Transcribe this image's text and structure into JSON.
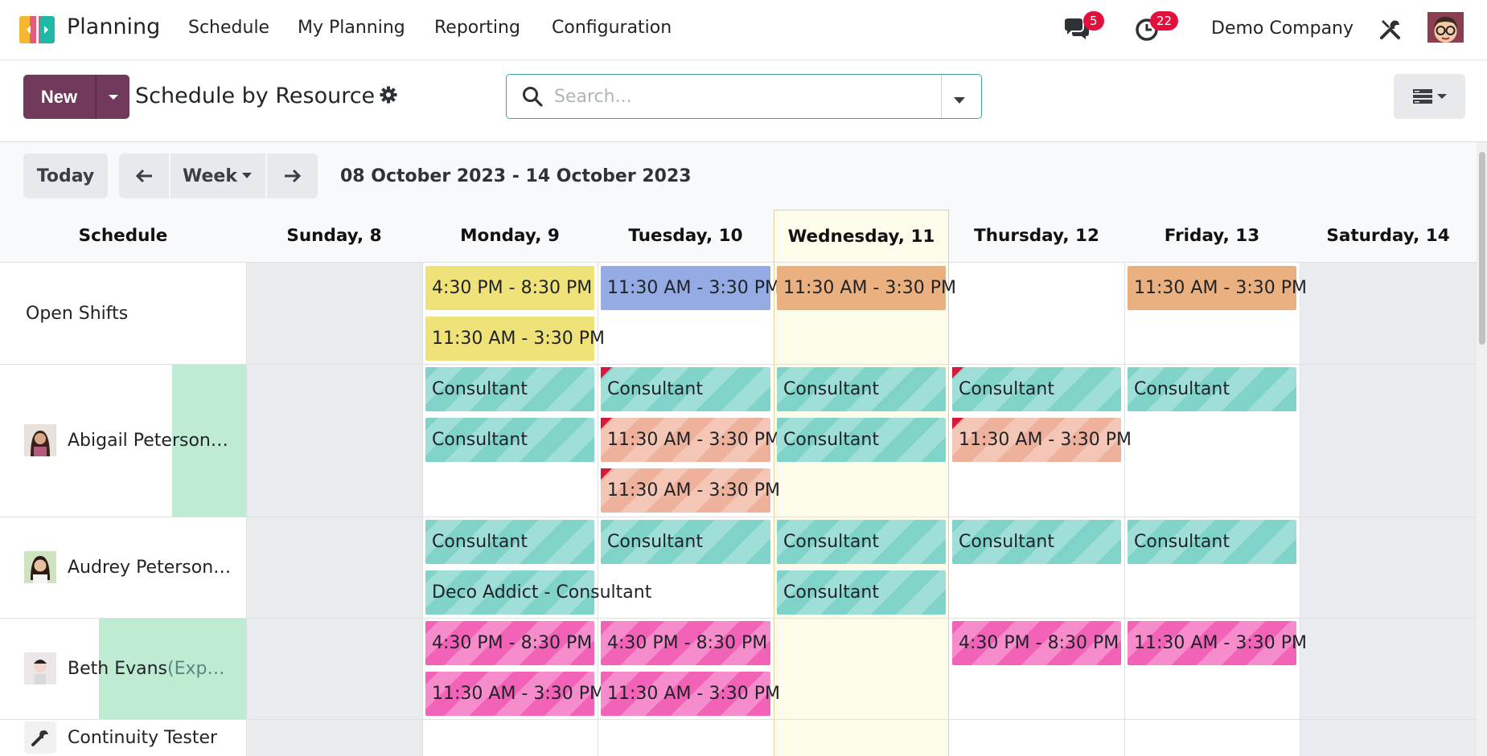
{
  "app": {
    "name": "Planning"
  },
  "nav": [
    "Schedule",
    "My Planning",
    "Reporting",
    "Configuration"
  ],
  "topbar": {
    "messages_count": "5",
    "activities_count": "22",
    "company": "Demo Company"
  },
  "control": {
    "new_label": "New",
    "view_title": "Schedule by Resource",
    "search_placeholder": "Search..."
  },
  "toolbar": {
    "today_label": "Today",
    "scale_label": "Week",
    "date_range": "08 October 2023 - 14 October 2023"
  },
  "columns": {
    "schedule": "Schedule",
    "days": [
      "Sunday, 8",
      "Monday, 9",
      "Tuesday, 10",
      "Wednesday, 11",
      "Thursday, 12",
      "Friday, 13",
      "Saturday, 14"
    ]
  },
  "rows": [
    {
      "label": "Open Shifts",
      "suffix": ""
    },
    {
      "label": "Abigail Peterson…",
      "suffix": ""
    },
    {
      "label": "Audrey Peterson…",
      "suffix": ""
    },
    {
      "label": "Beth Evans ",
      "suffix": "(Exp…"
    },
    {
      "label": "Continuity Tester",
      "suffix": ""
    }
  ],
  "shifts": {
    "open_mon_1": "4:30 PM - 8:30 PM",
    "open_mon_2": "11:30 AM - 3:30 PM",
    "open_tue_1": "11:30 AM - 3:30 PM",
    "open_wed_1": "11:30 AM - 3:30 PM",
    "open_fri_1": "11:30 AM - 3:30 PM",
    "ab_mon_1": "Consultant",
    "ab_mon_2": "Consultant",
    "ab_tue_1": "Consultant",
    "ab_tue_2": "11:30 AM - 3:30 PM",
    "ab_tue_3": "11:30 AM - 3:30 PM",
    "ab_wed_1": "Consultant",
    "ab_wed_2": "Consultant",
    "ab_thu_1": "Consultant",
    "ab_thu_2": "11:30 AM - 3:30 PM",
    "ab_fri_1": "Consultant",
    "au_mon_1": "Consultant",
    "au_mon_2": "Deco Addict - Consultant",
    "au_tue_1": "Consultant",
    "au_wed_1": "Consultant",
    "au_wed_2": "Consultant",
    "au_thu_1": "Consultant",
    "au_fri_1": "Consultant",
    "be_mon_1": "4:30 PM - 8:30 PM",
    "be_mon_2": "11:30 AM - 3:30 PM",
    "be_tue_1": "4:30 PM - 8:30 PM",
    "be_tue_2": "11:30 AM - 3:30 PM",
    "be_thu_1": "4:30 PM - 8:30 PM",
    "be_fri_1": "11:30 AM - 3:30 PM"
  },
  "colors": {
    "brand": "#71395b",
    "today_border": "#e4cf9e",
    "badge": "#e3103c"
  }
}
